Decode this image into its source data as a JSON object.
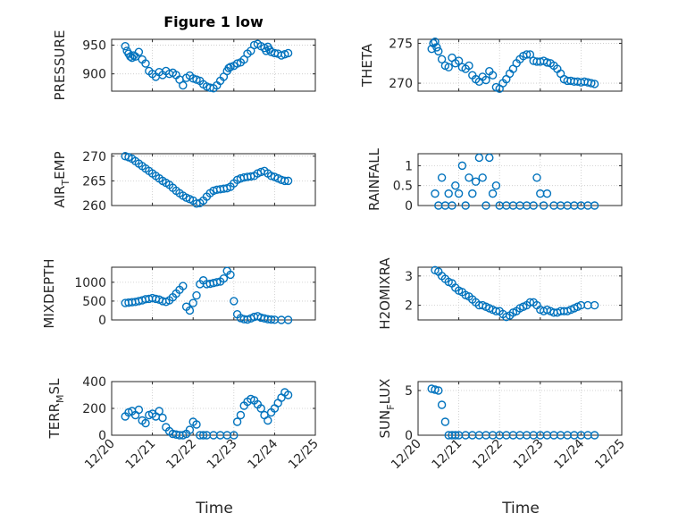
{
  "chart_data": [
    {
      "id": "pressure",
      "type": "scatter",
      "title": "Figure 1 low",
      "ylabel": "PRESSURE",
      "ylim": [
        870,
        960
      ],
      "yticks": [
        900,
        950
      ],
      "ytick_labels": [
        "900",
        "950"
      ],
      "xlim": [
        "2008-12-20",
        "2008-12-25"
      ],
      "xticks": [
        "12/20",
        "12/21",
        "12/22",
        "12/23",
        "12/24",
        "12/25"
      ],
      "grid": true,
      "x": [
        "12/20 08:00",
        "12/20 09:00",
        "12/20 10:00",
        "12/20 11:00",
        "12/20 12:00",
        "12/20 13:00",
        "12/20 14:00",
        "12/20 16:00",
        "12/20 18:00",
        "12/20 20:00",
        "12/20 22:00",
        "12/21 00:00",
        "12/21 02:00",
        "12/21 04:00",
        "12/21 06:00",
        "12/21 08:00",
        "12/21 10:00",
        "12/21 12:00",
        "12/21 14:00",
        "12/21 16:00",
        "12/21 18:00",
        "12/21 20:00",
        "12/21 22:00",
        "12/22 00:00",
        "12/22 02:00",
        "12/22 04:00",
        "12/22 06:00",
        "12/22 08:00",
        "12/22 10:00",
        "12/22 12:00",
        "12/22 14:00",
        "12/22 16:00",
        "12/22 18:00",
        "12/22 20:00",
        "12/22 21:00",
        "12/22 22:00",
        "12/23 00:00",
        "12/23 02:00",
        "12/23 04:00",
        "12/23 06:00",
        "12/23 08:00",
        "12/23 10:00",
        "12/23 12:00",
        "12/23 14:00",
        "12/23 16:00",
        "12/23 18:00",
        "12/23 19:00",
        "12/23 20:00",
        "12/23 21:00",
        "12/23 22:00",
        "12/24 00:00",
        "12/24 02:00",
        "12/24 04:00",
        "12/24 06:00",
        "12/24 08:00"
      ],
      "values": [
        948,
        940,
        935,
        930,
        928,
        932,
        930,
        938,
        925,
        918,
        905,
        900,
        895,
        903,
        898,
        905,
        900,
        902,
        898,
        890,
        880,
        893,
        897,
        892,
        890,
        888,
        882,
        878,
        876,
        875,
        880,
        888,
        895,
        905,
        910,
        912,
        914,
        918,
        920,
        925,
        935,
        940,
        950,
        952,
        948,
        945,
        940,
        947,
        942,
        938,
        936,
        935,
        932,
        934,
        936
      ]
    },
    {
      "id": "theta",
      "type": "scatter",
      "ylabel": "THETA",
      "ylim": [
        269,
        275.5
      ],
      "yticks": [
        270,
        275
      ],
      "ytick_labels": [
        "270",
        "275"
      ],
      "xlim": [
        "2008-12-20",
        "2008-12-25"
      ],
      "xticks": [
        "12/20",
        "12/21",
        "12/22",
        "12/23",
        "12/24",
        "12/25"
      ],
      "grid": true,
      "x": [
        "12/20 08:00",
        "12/20 09:00",
        "12/20 10:00",
        "12/20 11:00",
        "12/20 12:00",
        "12/20 14:00",
        "12/20 16:00",
        "12/20 18:00",
        "12/20 20:00",
        "12/20 22:00",
        "12/21 00:00",
        "12/21 02:00",
        "12/21 04:00",
        "12/21 06:00",
        "12/21 08:00",
        "12/21 10:00",
        "12/21 12:00",
        "12/21 14:00",
        "12/21 16:00",
        "12/21 18:00",
        "12/21 20:00",
        "12/21 22:00",
        "12/22 00:00",
        "12/22 02:00",
        "12/22 04:00",
        "12/22 06:00",
        "12/22 08:00",
        "12/22 10:00",
        "12/22 12:00",
        "12/22 14:00",
        "12/22 16:00",
        "12/22 18:00",
        "12/22 20:00",
        "12/22 22:00",
        "12/23 00:00",
        "12/23 02:00",
        "12/23 04:00",
        "12/23 06:00",
        "12/23 08:00",
        "12/23 10:00",
        "12/23 12:00",
        "12/23 14:00",
        "12/23 16:00",
        "12/23 18:00",
        "12/23 20:00",
        "12/23 22:00",
        "12/24 00:00",
        "12/24 02:00",
        "12/24 04:00",
        "12/24 06:00",
        "12/24 08:00"
      ],
      "values": [
        274.3,
        275.0,
        275.2,
        274.5,
        274.0,
        273.0,
        272.2,
        272.0,
        273.2,
        272.5,
        272.8,
        272.0,
        271.8,
        272.2,
        271.0,
        270.5,
        270.2,
        270.8,
        270.4,
        271.5,
        271.0,
        269.5,
        269.3,
        270.0,
        270.5,
        271.2,
        271.8,
        272.5,
        273.0,
        273.4,
        273.6,
        273.6,
        272.8,
        272.7,
        272.7,
        272.8,
        272.6,
        272.5,
        272.2,
        271.8,
        271.2,
        270.5,
        270.3,
        270.3,
        270.2,
        270.2,
        270.1,
        270.2,
        270.1,
        270.0,
        269.9
      ]
    },
    {
      "id": "air_temp",
      "type": "scatter",
      "ylabel": "AIR_TEMP",
      "ylim": [
        260,
        270.5
      ],
      "yticks": [
        260,
        265,
        270
      ],
      "ytick_labels": [
        "260",
        "265",
        "270"
      ],
      "xlim": [
        "2008-12-20",
        "2008-12-25"
      ],
      "xticks": [
        "12/20",
        "12/21",
        "12/22",
        "12/23",
        "12/24",
        "12/25"
      ],
      "grid": true,
      "x": [
        "12/20 08:00",
        "12/20 10:00",
        "12/20 12:00",
        "12/20 14:00",
        "12/20 16:00",
        "12/20 18:00",
        "12/20 20:00",
        "12/20 22:00",
        "12/21 00:00",
        "12/21 02:00",
        "12/21 04:00",
        "12/21 06:00",
        "12/21 08:00",
        "12/21 10:00",
        "12/21 12:00",
        "12/21 14:00",
        "12/21 16:00",
        "12/21 18:00",
        "12/21 20:00",
        "12/21 22:00",
        "12/22 00:00",
        "12/22 02:00",
        "12/22 04:00",
        "12/22 06:00",
        "12/22 08:00",
        "12/22 10:00",
        "12/22 12:00",
        "12/22 14:00",
        "12/22 16:00",
        "12/22 18:00",
        "12/22 20:00",
        "12/22 22:00",
        "12/23 00:00",
        "12/23 02:00",
        "12/23 04:00",
        "12/23 06:00",
        "12/23 08:00",
        "12/23 10:00",
        "12/23 12:00",
        "12/23 14:00",
        "12/23 16:00",
        "12/23 18:00",
        "12/23 20:00",
        "12/23 22:00",
        "12/24 00:00",
        "12/24 02:00",
        "12/24 04:00",
        "12/24 06:00",
        "12/24 08:00"
      ],
      "values": [
        270.0,
        269.8,
        269.5,
        269.0,
        268.5,
        268.0,
        267.5,
        267.0,
        266.5,
        266.0,
        265.5,
        265.0,
        264.6,
        264.2,
        263.6,
        263.0,
        262.5,
        262.0,
        261.6,
        261.3,
        261.0,
        260.4,
        260.5,
        261.0,
        261.8,
        262.5,
        263.0,
        263.2,
        263.3,
        263.4,
        263.5,
        263.8,
        264.5,
        265.2,
        265.5,
        265.7,
        265.8,
        265.9,
        266.0,
        266.5,
        266.8,
        267.0,
        266.5,
        266.0,
        265.8,
        265.5,
        265.2,
        265.0,
        265.0
      ]
    },
    {
      "id": "rainfall",
      "type": "scatter",
      "ylabel": "RAINFALL",
      "ylim": [
        0,
        1.3
      ],
      "yticks": [
        0,
        0.5,
        1
      ],
      "ytick_labels": [
        "0",
        "0.5",
        "1"
      ],
      "xlim": [
        "2008-12-20",
        "2008-12-25"
      ],
      "xticks": [
        "12/20",
        "12/21",
        "12/22",
        "12/23",
        "12/24",
        "12/25"
      ],
      "grid": true,
      "x": [
        "12/20 10:00",
        "12/20 12:00",
        "12/20 14:00",
        "12/20 16:00",
        "12/20 18:00",
        "12/20 20:00",
        "12/20 22:00",
        "12/21 00:00",
        "12/21 02:00",
        "12/21 04:00",
        "12/21 06:00",
        "12/21 08:00",
        "12/21 10:00",
        "12/21 12:00",
        "12/21 14:00",
        "12/21 16:00",
        "12/21 18:00",
        "12/21 20:00",
        "12/21 22:00",
        "12/22 00:00",
        "12/22 04:00",
        "12/22 08:00",
        "12/22 12:00",
        "12/22 16:00",
        "12/22 20:00",
        "12/22 22:00",
        "12/23 00:00",
        "12/23 02:00",
        "12/23 04:00",
        "12/23 08:00",
        "12/23 12:00",
        "12/23 16:00",
        "12/23 20:00",
        "12/24 00:00",
        "12/24 04:00",
        "12/24 08:00"
      ],
      "values": [
        0.3,
        0.0,
        0.7,
        0.0,
        0.3,
        0.0,
        0.5,
        0.3,
        1.0,
        0.0,
        0.7,
        0.3,
        0.6,
        1.2,
        0.7,
        0.0,
        1.2,
        0.3,
        0.5,
        0.0,
        0.0,
        0.0,
        0.0,
        0.0,
        0.0,
        0.7,
        0.3,
        0.0,
        0.3,
        0.0,
        0.0,
        0.0,
        0.0,
        0.0,
        0.0,
        0.0
      ]
    },
    {
      "id": "mixdepth",
      "type": "scatter",
      "ylabel": "MIXDEPTH",
      "ylim": [
        0,
        1400
      ],
      "yticks": [
        0,
        500,
        1000
      ],
      "ytick_labels": [
        "0",
        "500",
        "1000"
      ],
      "xlim": [
        "2008-12-20",
        "2008-12-25"
      ],
      "xticks": [
        "12/20",
        "12/21",
        "12/22",
        "12/23",
        "12/24",
        "12/25"
      ],
      "grid": true,
      "x": [
        "12/20 08:00",
        "12/20 10:00",
        "12/20 12:00",
        "12/20 14:00",
        "12/20 16:00",
        "12/20 18:00",
        "12/20 20:00",
        "12/20 22:00",
        "12/21 00:00",
        "12/21 02:00",
        "12/21 04:00",
        "12/21 06:00",
        "12/21 08:00",
        "12/21 10:00",
        "12/21 12:00",
        "12/21 14:00",
        "12/21 16:00",
        "12/21 18:00",
        "12/21 20:00",
        "12/21 22:00",
        "12/22 00:00",
        "12/22 02:00",
        "12/22 04:00",
        "12/22 06:00",
        "12/22 08:00",
        "12/22 10:00",
        "12/22 12:00",
        "12/22 14:00",
        "12/22 16:00",
        "12/22 18:00",
        "12/22 20:00",
        "12/22 22:00",
        "12/23 00:00",
        "12/23 02:00",
        "12/23 04:00",
        "12/23 06:00",
        "12/23 08:00",
        "12/23 10:00",
        "12/23 12:00",
        "12/23 14:00",
        "12/23 16:00",
        "12/23 18:00",
        "12/23 20:00",
        "12/23 22:00",
        "12/24 00:00",
        "12/24 04:00",
        "12/24 08:00"
      ],
      "values": [
        450,
        460,
        470,
        480,
        500,
        520,
        550,
        560,
        580,
        560,
        540,
        500,
        480,
        520,
        600,
        700,
        800,
        900,
        350,
        250,
        450,
        650,
        950,
        1050,
        950,
        960,
        980,
        1000,
        1020,
        1100,
        1300,
        1200,
        500,
        150,
        50,
        20,
        10,
        40,
        80,
        100,
        60,
        40,
        20,
        10,
        5,
        0,
        0
      ]
    },
    {
      "id": "h2omixra",
      "type": "scatter",
      "ylabel": "H2OMIXRA",
      "ylim": [
        1.5,
        3.3
      ],
      "yticks": [
        2,
        3
      ],
      "ytick_labels": [
        "2",
        "3"
      ],
      "xlim": [
        "2008-12-20",
        "2008-12-25"
      ],
      "xticks": [
        "12/20",
        "12/21",
        "12/22",
        "12/23",
        "12/24",
        "12/25"
      ],
      "grid": true,
      "x": [
        "12/20 10:00",
        "12/20 12:00",
        "12/20 14:00",
        "12/20 16:00",
        "12/20 18:00",
        "12/20 20:00",
        "12/20 22:00",
        "12/21 00:00",
        "12/21 02:00",
        "12/21 04:00",
        "12/21 06:00",
        "12/21 08:00",
        "12/21 10:00",
        "12/21 12:00",
        "12/21 14:00",
        "12/21 16:00",
        "12/21 18:00",
        "12/21 20:00",
        "12/21 22:00",
        "12/22 00:00",
        "12/22 02:00",
        "12/22 04:00",
        "12/22 06:00",
        "12/22 08:00",
        "12/22 10:00",
        "12/22 12:00",
        "12/22 14:00",
        "12/22 16:00",
        "12/22 18:00",
        "12/22 20:00",
        "12/22 22:00",
        "12/23 00:00",
        "12/23 02:00",
        "12/23 04:00",
        "12/23 06:00",
        "12/23 08:00",
        "12/23 10:00",
        "12/23 12:00",
        "12/23 14:00",
        "12/23 16:00",
        "12/23 18:00",
        "12/23 20:00",
        "12/23 22:00",
        "12/24 00:00",
        "12/24 04:00",
        "12/24 08:00"
      ],
      "values": [
        3.2,
        3.15,
        3.0,
        2.9,
        2.8,
        2.75,
        2.6,
        2.5,
        2.45,
        2.35,
        2.3,
        2.2,
        2.1,
        2.0,
        2.0,
        1.95,
        1.9,
        1.85,
        1.8,
        1.8,
        1.7,
        1.6,
        1.65,
        1.75,
        1.8,
        1.9,
        1.95,
        2.0,
        2.1,
        2.1,
        2.0,
        1.85,
        1.8,
        1.85,
        1.8,
        1.75,
        1.75,
        1.8,
        1.8,
        1.8,
        1.85,
        1.9,
        1.95,
        2.0,
        2.0,
        2.0
      ]
    },
    {
      "id": "terr_msl",
      "type": "scatter",
      "ylabel": "TERR_MSL",
      "ylim": [
        0,
        400
      ],
      "yticks": [
        0,
        200,
        400
      ],
      "ytick_labels": [
        "0",
        "200",
        "400"
      ],
      "xlim": [
        "2008-12-20",
        "2008-12-25"
      ],
      "xticks": [
        "12/20",
        "12/21",
        "12/22",
        "12/23",
        "12/24",
        "12/25"
      ],
      "grid": true,
      "x": [
        "12/20 08:00",
        "12/20 10:00",
        "12/20 12:00",
        "12/20 14:00",
        "12/20 16:00",
        "12/20 18:00",
        "12/20 20:00",
        "12/20 22:00",
        "12/21 00:00",
        "12/21 02:00",
        "12/21 04:00",
        "12/21 06:00",
        "12/21 08:00",
        "12/21 10:00",
        "12/21 12:00",
        "12/21 14:00",
        "12/21 16:00",
        "12/21 18:00",
        "12/21 20:00",
        "12/21 22:00",
        "12/22 00:00",
        "12/22 02:00",
        "12/22 04:00",
        "12/22 06:00",
        "12/22 08:00",
        "12/22 12:00",
        "12/22 16:00",
        "12/22 20:00",
        "12/23 00:00",
        "12/23 02:00",
        "12/23 04:00",
        "12/23 06:00",
        "12/23 08:00",
        "12/23 10:00",
        "12/23 12:00",
        "12/23 14:00",
        "12/23 16:00",
        "12/23 18:00",
        "12/23 20:00",
        "12/23 22:00",
        "12/24 00:00",
        "12/24 02:00",
        "12/24 04:00",
        "12/24 06:00",
        "12/24 08:00"
      ],
      "values": [
        140,
        170,
        180,
        150,
        190,
        110,
        90,
        150,
        160,
        140,
        180,
        130,
        60,
        30,
        10,
        5,
        0,
        0,
        10,
        40,
        100,
        80,
        0,
        0,
        0,
        0,
        0,
        0,
        0,
        100,
        150,
        220,
        250,
        270,
        260,
        230,
        200,
        150,
        110,
        170,
        200,
        240,
        280,
        320,
        300
      ]
    },
    {
      "id": "sun_flux",
      "type": "scatter",
      "ylabel": "SUN_FLUX",
      "ylim": [
        0,
        6
      ],
      "yticks": [
        0,
        5
      ],
      "ytick_labels": [
        "0",
        "5"
      ],
      "xlim": [
        "2008-12-20",
        "2008-12-25"
      ],
      "xticks": [
        "12/20",
        "12/21",
        "12/22",
        "12/23",
        "12/24",
        "12/25"
      ],
      "grid": true,
      "x": [
        "12/20 08:00",
        "12/20 10:00",
        "12/20 12:00",
        "12/20 14:00",
        "12/20 16:00",
        "12/20 18:00",
        "12/20 20:00",
        "12/20 22:00",
        "12/21 00:00",
        "12/21 04:00",
        "12/21 08:00",
        "12/21 12:00",
        "12/21 16:00",
        "12/21 20:00",
        "12/22 00:00",
        "12/22 04:00",
        "12/22 08:00",
        "12/22 12:00",
        "12/22 16:00",
        "12/22 20:00",
        "12/23 00:00",
        "12/23 04:00",
        "12/23 08:00",
        "12/23 12:00",
        "12/23 16:00",
        "12/23 20:00",
        "12/24 00:00",
        "12/24 04:00",
        "12/24 08:00"
      ],
      "values": [
        5.2,
        5.1,
        5.0,
        3.4,
        1.5,
        0,
        0,
        0,
        0,
        0,
        0,
        0,
        0,
        0,
        0,
        0,
        0,
        0,
        0,
        0,
        0,
        0,
        0,
        0,
        0,
        0,
        0,
        0,
        0
      ]
    }
  ],
  "xlabel_left": "Time",
  "xlabel_right": "Time"
}
